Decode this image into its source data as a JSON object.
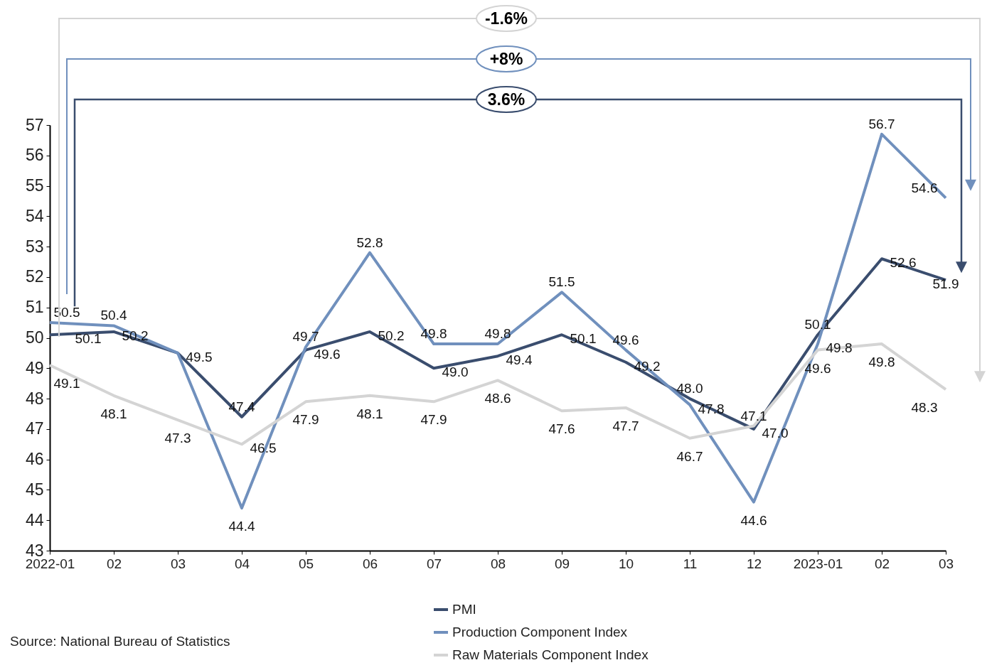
{
  "chart_data": {
    "type": "line",
    "categories": [
      "2022-01",
      "02",
      "03",
      "04",
      "05",
      "06",
      "07",
      "08",
      "09",
      "10",
      "11",
      "12",
      "2023-01",
      "02",
      "03"
    ],
    "series": [
      {
        "name": "PMI",
        "color": "#3a4d6e",
        "values": [
          50.1,
          50.2,
          49.5,
          47.4,
          49.6,
          50.2,
          49.0,
          49.4,
          50.1,
          49.2,
          48.0,
          47.0,
          50.1,
          52.6,
          51.9
        ],
        "value_labels": [
          "50.1",
          "50.2",
          null,
          "47.4",
          "49.6",
          "50.2",
          "49.0",
          "49.4",
          "50.1",
          "49.2",
          "48.0",
          "47.0",
          "50.1",
          "52.6",
          "51.9"
        ]
      },
      {
        "name": "Production Component Index",
        "color": "#7090bd",
        "values": [
          50.5,
          50.4,
          49.5,
          44.4,
          49.7,
          52.8,
          49.8,
          49.8,
          51.5,
          49.6,
          47.8,
          44.6,
          49.8,
          56.7,
          54.6
        ],
        "value_labels": [
          "50.5",
          "50.4",
          "49.5",
          "44.4",
          "49.7",
          "52.8",
          "49.8",
          "49.8",
          "51.5",
          "49.6",
          "47.8",
          "44.6",
          "49.8",
          "56.7",
          "54.6"
        ]
      },
      {
        "name": "Raw Materials Component Index",
        "color": "#d4d4d4",
        "values": [
          49.1,
          48.1,
          47.3,
          46.5,
          47.9,
          48.1,
          47.9,
          48.6,
          47.6,
          47.7,
          46.7,
          47.1,
          49.6,
          49.8,
          48.3
        ],
        "value_labels": [
          "49.1",
          "48.1",
          "47.3",
          "46.5",
          "47.9",
          "48.1",
          "47.9",
          "48.6",
          "47.6",
          "47.7",
          "46.7",
          "47.1",
          "49.6",
          "49.8",
          "48.3"
        ]
      }
    ],
    "ylim": [
      43,
      57
    ],
    "yticks": [
      43,
      44,
      45,
      46,
      47,
      48,
      49,
      50,
      51,
      52,
      53,
      54,
      55,
      56,
      57
    ],
    "grid": false,
    "legend": "bottom",
    "marker": "none",
    "line_style": "solid",
    "annotations": [
      "-1.6%",
      "+8%",
      "3.6%",
      "Source: National Bureau of Statistics"
    ]
  }
}
